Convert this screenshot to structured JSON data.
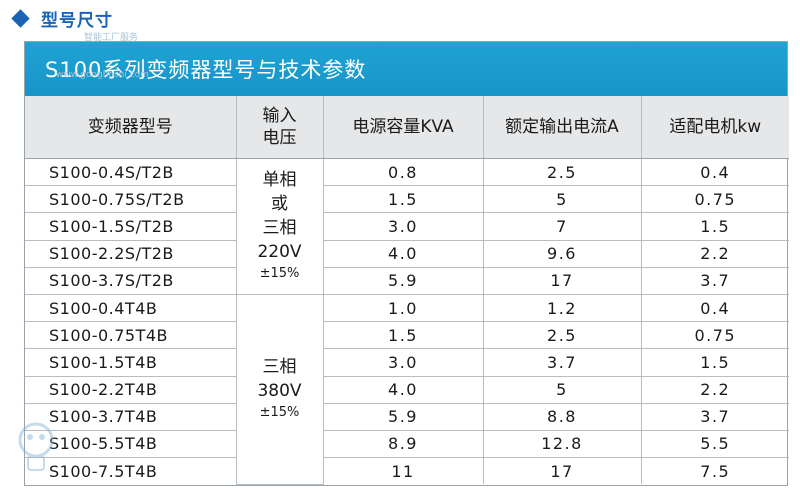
{
  "section": {
    "title": "型号尺寸",
    "accent": "#1a63b5"
  },
  "banner": {
    "title": "S100系列变频器型号与技术参数",
    "color": "#1fa3d4"
  },
  "table": {
    "headers": {
      "model": "变频器型号",
      "voltage_1": "输入",
      "voltage_2": "电压",
      "capacity": "电源容量KVA",
      "current": "额定输出电流A",
      "motor": "适配电机kw"
    },
    "groups": [
      {
        "voltage_lines": [
          "单相",
          "或",
          "三相",
          "220V"
        ],
        "tolerance": "±15%",
        "rows": [
          {
            "model": "S100-0.4S/T2B",
            "capacity": "0.8",
            "current": "2.5",
            "motor": "0.4"
          },
          {
            "model": "S100-0.75S/T2B",
            "capacity": "1.5",
            "current": "5",
            "motor": "0.75"
          },
          {
            "model": "S100-1.5S/T2B",
            "capacity": "3.0",
            "current": "7",
            "motor": "1.5"
          },
          {
            "model": "S100-2.2S/T2B",
            "capacity": "4.0",
            "current": "9.6",
            "motor": "2.2"
          },
          {
            "model": "S100-3.7S/T2B",
            "capacity": "5.9",
            "current": "17",
            "motor": "3.7"
          }
        ]
      },
      {
        "voltage_lines": [
          "三相",
          "380V"
        ],
        "tolerance": "±15%",
        "rows": [
          {
            "model": "S100-0.4T4B",
            "capacity": "1.0",
            "current": "1.2",
            "motor": "0.4"
          },
          {
            "model": "S100-0.75T4B",
            "capacity": "1.5",
            "current": "2.5",
            "motor": "0.75"
          },
          {
            "model": "S100-1.5T4B",
            "capacity": "3.0",
            "current": "3.7",
            "motor": "1.5"
          },
          {
            "model": "S100-2.2T4B",
            "capacity": "4.0",
            "current": "5",
            "motor": "2.2"
          },
          {
            "model": "S100-3.7T4B",
            "capacity": "5.9",
            "current": "8.8",
            "motor": "3.7"
          },
          {
            "model": "S100-5.5T4B",
            "capacity": "8.9",
            "current": "12.8",
            "motor": "5.5"
          },
          {
            "model": "S100-7.5T4B",
            "capacity": "11",
            "current": "17",
            "motor": "7.5"
          }
        ]
      }
    ]
  },
  "watermark": {
    "line1": "www.gongboshi.com",
    "line2": "智能工厂服务"
  }
}
